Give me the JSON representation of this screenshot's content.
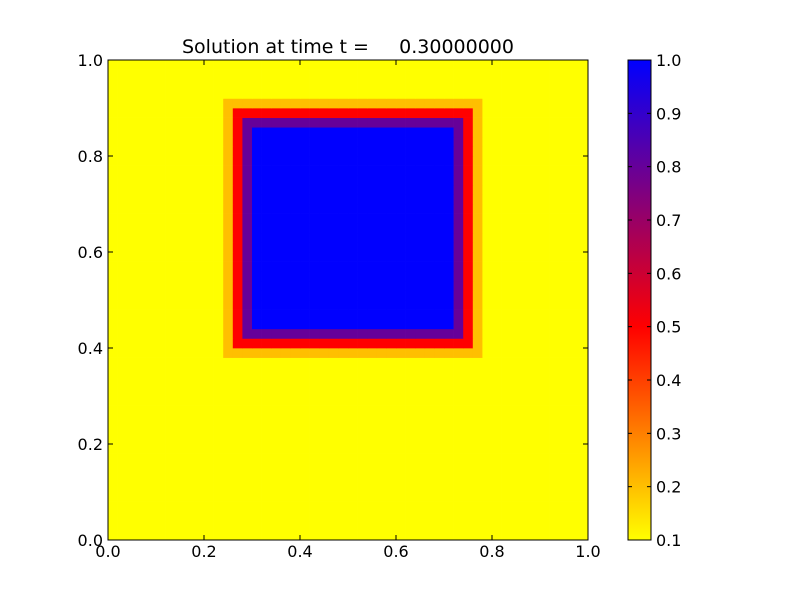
{
  "chart_data": {
    "type": "heatmap",
    "title": "Solution at time t =     0.30000000",
    "xlabel": "",
    "ylabel": "",
    "xlim": [
      0.0,
      1.0
    ],
    "ylim": [
      0.0,
      1.0
    ],
    "x_ticks": [
      "0.0",
      "0.2",
      "0.4",
      "0.6",
      "0.8",
      "1.0"
    ],
    "y_ticks": [
      "0.0",
      "0.2",
      "0.4",
      "0.6",
      "0.8",
      "1.0"
    ],
    "grid": false,
    "grid_cells": [
      50,
      50
    ],
    "background_value": 0.1,
    "square_region": {
      "x": [
        0.25,
        0.75
      ],
      "y": [
        0.4,
        0.9
      ],
      "value": 1.0,
      "edge_profile": [
        {
          "offset_cells": -1,
          "value": 0.2
        },
        {
          "offset_cells": 0,
          "value": 0.5
        },
        {
          "offset_cells": 1,
          "value": 0.8
        }
      ]
    },
    "colorbar": {
      "range": [
        0.1,
        1.0
      ],
      "ticks": [
        "0.1",
        "0.2",
        "0.3",
        "0.4",
        "0.5",
        "0.6",
        "0.7",
        "0.8",
        "0.9",
        "1.0"
      ],
      "colormap": [
        {
          "value": 0.1,
          "color": "#ffff00"
        },
        {
          "value": 0.5,
          "color": "#ff0000"
        },
        {
          "value": 1.0,
          "color": "#0000ff"
        }
      ]
    }
  }
}
